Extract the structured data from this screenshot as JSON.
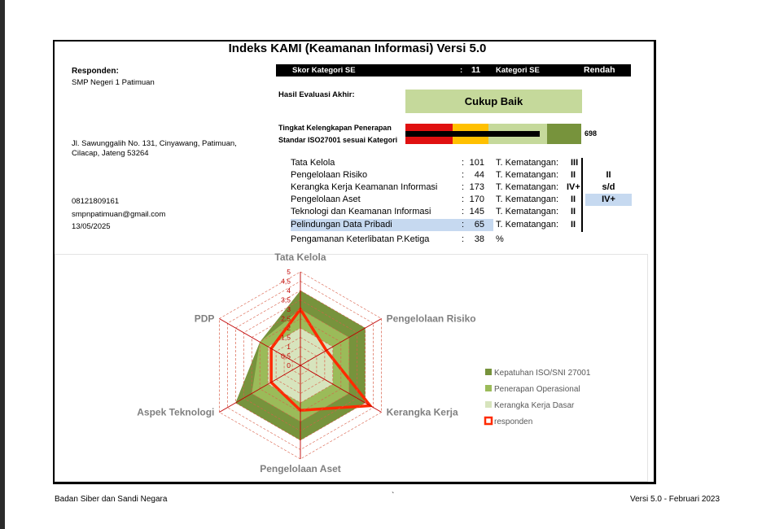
{
  "title": "Indeks KAMI (Keamanan Informasi) Versi 5.0",
  "responden": {
    "label": "Responden:",
    "name": "SMP Negeri 1 Patimuan",
    "address1": "Jl. Sawunggalih No. 131, Cinyawang, Patimuan,",
    "address2": "Cilacap, Jateng 53264",
    "phone": "08121809161",
    "email": "smpnpatimuan@gmail.com",
    "date": "13/05/2025"
  },
  "skor": {
    "label": "Skor Kategori SE",
    "colon": ":",
    "value": "11",
    "kategori_label": "Kategori SE",
    "kategori_value": "Rendah"
  },
  "hasil": {
    "label": "Hasil Evaluasi Akhir:",
    "value": "Cukup Baik"
  },
  "kelengkapan": {
    "label1": "Tingkat Kelengkapan Penerapan",
    "label2": "Standar ISO27001 sesuai Kategori",
    "value": "698",
    "progress": 0.83,
    "colors": {
      "red": "#e01010",
      "yellow": "#ffc000",
      "light": "#c5d99b",
      "dark": "#77933c"
    }
  },
  "areas": [
    {
      "name": "Tata Kelola",
      "colon": ":",
      "score": "101",
      "tk_label": "T. Kematangan:",
      "tk": "III"
    },
    {
      "name": "Pengelolaan Risiko",
      "colon": ":",
      "score": "44",
      "tk_label": "T. Kematangan:",
      "tk": "II"
    },
    {
      "name": "Kerangka Kerja Keamanan Informasi",
      "colon": ":",
      "score": "173",
      "tk_label": "T. Kematangan:",
      "tk": "IV+"
    },
    {
      "name": "Pengelolaan Aset",
      "colon": ":",
      "score": "170",
      "tk_label": "T. Kematangan:",
      "tk": "II"
    },
    {
      "name": "Teknologi dan Keamanan Informasi",
      "colon": ":",
      "score": "145",
      "tk_label": "T. Kematangan:",
      "tk": "II"
    },
    {
      "name": "Pelindungan Data Pribadi",
      "colon": ":",
      "score": "65",
      "tk_label": "T. Kematangan:",
      "tk": "II"
    }
  ],
  "range": {
    "from": "II",
    "sd": "s/d",
    "to": "IV+"
  },
  "pihak_ketiga": {
    "name": "Pengamanan Keterlibatan P.Ketiga",
    "colon": ":",
    "score": "38",
    "unit": "%"
  },
  "chart_data": {
    "type": "radar",
    "axes": [
      "Tata Kelola",
      "Pengelolaan Risiko",
      "Kerangka Kerja",
      "Pengelolaan Aset",
      "Aspek Teknologi",
      "PDP"
    ],
    "ticks": [
      "0",
      "0,5",
      "1",
      "1,5",
      "2",
      "2,5",
      "3",
      "3,5",
      "4",
      "4,5",
      "5"
    ],
    "rmax": 5,
    "series": [
      {
        "name": "Kepatuhan ISO/SNI 27001",
        "color": "#77933c",
        "values": [
          4,
          4,
          4,
          4,
          4,
          2.5
        ]
      },
      {
        "name": "Penerapan Operasional",
        "color": "#9bbb59",
        "values": [
          3,
          3,
          3,
          3,
          3,
          2.5
        ]
      },
      {
        "name": "Kerangka Kerja Dasar",
        "color": "#d7e4bd",
        "values": [
          2,
          2,
          2,
          2,
          2,
          2
        ]
      },
      {
        "name": "responden",
        "color": "#ff2a00",
        "values": [
          3,
          1.6,
          4.3,
          2.4,
          1.8,
          1.8
        ]
      }
    ]
  },
  "footer": {
    "left": "Badan Siber dan Sandi Negara",
    "mid": "`",
    "right": "Versi 5.0 - Februari 2023"
  }
}
